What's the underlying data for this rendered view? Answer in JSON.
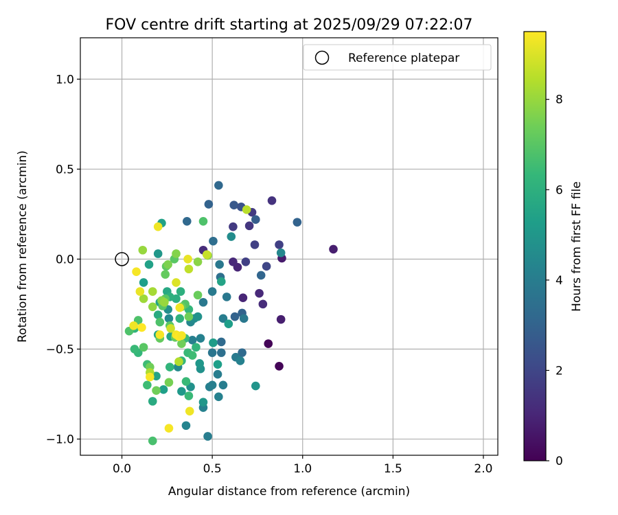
{
  "chart_data": {
    "type": "scatter",
    "title": "FOV centre drift starting at 2025/09/29 07:22:07",
    "xlabel": "Angular distance from reference (arcmin)",
    "ylabel": "Rotation from reference (arcmin)",
    "xlim": [
      -0.23,
      2.08
    ],
    "ylim": [
      -1.09,
      1.23
    ],
    "xticks": [
      0.0,
      0.5,
      1.0,
      1.5,
      2.0
    ],
    "xtick_labels": [
      "0.0",
      "0.5",
      "1.0",
      "1.5",
      "2.0"
    ],
    "yticks": [
      -1.0,
      -0.5,
      0.0,
      0.5,
      1.0
    ],
    "ytick_labels": [
      "−1.0",
      "−0.5",
      "0.0",
      "0.5",
      "1.0"
    ],
    "grid": true,
    "legend": {
      "placement": "top-right",
      "entries": [
        {
          "label": "Reference platepar",
          "marker": "open-circle"
        }
      ]
    },
    "reference_point": {
      "x": 0.0,
      "y": 0.0
    },
    "colorbar": {
      "label": "Hours from first FF file",
      "colormap": "viridis",
      "range": [
        0,
        9.5
      ],
      "ticks": [
        0,
        2,
        4,
        6,
        8
      ],
      "tick_labels": [
        "0",
        "2",
        "4",
        "6",
        "8"
      ]
    },
    "colormap_stops": [
      "#440154",
      "#482878",
      "#3e4a89",
      "#31688e",
      "#26828e",
      "#1f9e89",
      "#35b779",
      "#6ece58",
      "#b5de2b",
      "#fde725"
    ],
    "points": [
      {
        "x": 0.81,
        "y": -0.47,
        "h": 0.1
      },
      {
        "x": 0.87,
        "y": -0.595,
        "h": 0.1
      },
      {
        "x": 1.17,
        "y": 0.055,
        "h": 0.8
      },
      {
        "x": 0.885,
        "y": 0.005,
        "h": 0.7
      },
      {
        "x": 0.88,
        "y": -0.335,
        "h": 0.8
      },
      {
        "x": 0.64,
        "y": -0.045,
        "h": 1.0
      },
      {
        "x": 0.615,
        "y": -0.015,
        "h": 1.1
      },
      {
        "x": 0.67,
        "y": -0.215,
        "h": 1.0
      },
      {
        "x": 0.76,
        "y": -0.19,
        "h": 1.1
      },
      {
        "x": 0.78,
        "y": -0.25,
        "h": 1.2
      },
      {
        "x": 0.45,
        "y": 0.05,
        "h": 1.2
      },
      {
        "x": 0.615,
        "y": 0.18,
        "h": 1.6
      },
      {
        "x": 0.705,
        "y": 0.185,
        "h": 1.5
      },
      {
        "x": 0.72,
        "y": 0.26,
        "h": 1.6
      },
      {
        "x": 0.83,
        "y": 0.325,
        "h": 1.4
      },
      {
        "x": 0.87,
        "y": 0.08,
        "h": 1.8
      },
      {
        "x": 0.735,
        "y": 0.08,
        "h": 1.8
      },
      {
        "x": 0.685,
        "y": -0.015,
        "h": 1.8
      },
      {
        "x": 0.8,
        "y": -0.04,
        "h": 2.0
      },
      {
        "x": 0.62,
        "y": 0.3,
        "h": 2.6
      },
      {
        "x": 0.66,
        "y": 0.29,
        "h": 2.4
      },
      {
        "x": 0.74,
        "y": 0.22,
        "h": 2.8
      },
      {
        "x": 0.97,
        "y": 0.205,
        "h": 3.0
      },
      {
        "x": 0.48,
        "y": 0.305,
        "h": 3.0
      },
      {
        "x": 0.535,
        "y": 0.41,
        "h": 3.2
      },
      {
        "x": 0.36,
        "y": 0.21,
        "h": 3.2
      },
      {
        "x": 0.77,
        "y": -0.09,
        "h": 3.1
      },
      {
        "x": 0.625,
        "y": -0.32,
        "h": 3.0
      },
      {
        "x": 0.665,
        "y": -0.3,
        "h": 3.0
      },
      {
        "x": 0.505,
        "y": 0.1,
        "h": 3.4
      },
      {
        "x": 0.545,
        "y": -0.1,
        "h": 3.5
      },
      {
        "x": 0.54,
        "y": -0.03,
        "h": 3.8
      },
      {
        "x": 0.5,
        "y": -0.18,
        "h": 3.9
      },
      {
        "x": 0.45,
        "y": -0.24,
        "h": 3.8
      },
      {
        "x": 0.58,
        "y": -0.21,
        "h": 3.8
      },
      {
        "x": 0.675,
        "y": -0.33,
        "h": 3.8
      },
      {
        "x": 0.56,
        "y": -0.33,
        "h": 4.0
      },
      {
        "x": 0.88,
        "y": 0.035,
        "h": 4.4
      },
      {
        "x": 0.605,
        "y": 0.125,
        "h": 4.6
      },
      {
        "x": 0.55,
        "y": -0.46,
        "h": 3.3
      },
      {
        "x": 0.55,
        "y": -0.52,
        "h": 3.5
      },
      {
        "x": 0.5,
        "y": -0.52,
        "h": 3.7
      },
      {
        "x": 0.665,
        "y": -0.52,
        "h": 3.3
      },
      {
        "x": 0.63,
        "y": -0.545,
        "h": 3.9
      },
      {
        "x": 0.655,
        "y": -0.565,
        "h": 4.2
      },
      {
        "x": 0.53,
        "y": -0.64,
        "h": 4.0
      },
      {
        "x": 0.56,
        "y": -0.7,
        "h": 4.0
      },
      {
        "x": 0.5,
        "y": -0.7,
        "h": 4.1
      },
      {
        "x": 0.485,
        "y": -0.71,
        "h": 4.1
      },
      {
        "x": 0.535,
        "y": -0.765,
        "h": 4.2
      },
      {
        "x": 0.45,
        "y": -0.825,
        "h": 4.2
      },
      {
        "x": 0.475,
        "y": -0.985,
        "h": 4.0
      },
      {
        "x": 0.355,
        "y": -0.925,
        "h": 4.3
      },
      {
        "x": 0.74,
        "y": -0.705,
        "h": 4.9
      },
      {
        "x": 0.435,
        "y": -0.44,
        "h": 4.2
      },
      {
        "x": 0.39,
        "y": -0.45,
        "h": 4.1
      },
      {
        "x": 0.38,
        "y": -0.35,
        "h": 4.4
      },
      {
        "x": 0.4,
        "y": -0.33,
        "h": 4.6
      },
      {
        "x": 0.42,
        "y": -0.32,
        "h": 4.8
      },
      {
        "x": 0.26,
        "y": -0.33,
        "h": 4.5
      },
      {
        "x": 0.255,
        "y": -0.28,
        "h": 4.7
      },
      {
        "x": 0.31,
        "y": -0.6,
        "h": 4.5
      },
      {
        "x": 0.38,
        "y": -0.71,
        "h": 4.8
      },
      {
        "x": 0.435,
        "y": -0.61,
        "h": 4.8
      },
      {
        "x": 0.43,
        "y": -0.58,
        "h": 5.0
      },
      {
        "x": 0.505,
        "y": -0.465,
        "h": 5.2
      },
      {
        "x": 0.53,
        "y": -0.585,
        "h": 5.3
      },
      {
        "x": 0.59,
        "y": -0.36,
        "h": 5.3
      },
      {
        "x": 0.55,
        "y": -0.125,
        "h": 5.5
      },
      {
        "x": 0.45,
        "y": -0.795,
        "h": 5.0
      },
      {
        "x": 0.33,
        "y": -0.735,
        "h": 5.1
      },
      {
        "x": 0.23,
        "y": -0.725,
        "h": 5.3
      },
      {
        "x": 0.19,
        "y": -0.65,
        "h": 5.5
      },
      {
        "x": 0.2,
        "y": 0.03,
        "h": 5.0
      },
      {
        "x": 0.22,
        "y": 0.2,
        "h": 5.4
      },
      {
        "x": 0.15,
        "y": -0.03,
        "h": 5.4
      },
      {
        "x": 0.12,
        "y": -0.13,
        "h": 5.3
      },
      {
        "x": 0.21,
        "y": -0.24,
        "h": 5.5
      },
      {
        "x": 0.25,
        "y": -0.18,
        "h": 5.7
      },
      {
        "x": 0.3,
        "y": -0.22,
        "h": 5.9
      },
      {
        "x": 0.27,
        "y": -0.43,
        "h": 5.6
      },
      {
        "x": 0.17,
        "y": -0.79,
        "h": 5.8
      },
      {
        "x": 0.2,
        "y": -0.42,
        "h": 5.6
      },
      {
        "x": 0.2,
        "y": -0.31,
        "h": 5.8
      },
      {
        "x": 0.265,
        "y": -0.21,
        "h": 6.0
      },
      {
        "x": 0.325,
        "y": -0.18,
        "h": 6.0
      },
      {
        "x": 0.32,
        "y": -0.33,
        "h": 6.1
      },
      {
        "x": 0.37,
        "y": -0.28,
        "h": 6.3
      },
      {
        "x": 0.35,
        "y": -0.44,
        "h": 6.4
      },
      {
        "x": 0.41,
        "y": -0.49,
        "h": 6.2
      },
      {
        "x": 0.365,
        "y": -0.52,
        "h": 6.4
      },
      {
        "x": 0.39,
        "y": -0.535,
        "h": 6.5
      },
      {
        "x": 0.33,
        "y": -0.565,
        "h": 6.3
      },
      {
        "x": 0.265,
        "y": -0.6,
        "h": 6.2
      },
      {
        "x": 0.37,
        "y": -0.76,
        "h": 6.4
      },
      {
        "x": 0.355,
        "y": -0.68,
        "h": 6.4
      },
      {
        "x": 0.14,
        "y": -0.7,
        "h": 6.5
      },
      {
        "x": 0.14,
        "y": -0.585,
        "h": 6.5
      },
      {
        "x": 0.07,
        "y": -0.385,
        "h": 6.2
      },
      {
        "x": 0.09,
        "y": -0.52,
        "h": 6.3
      },
      {
        "x": 0.07,
        "y": -0.5,
        "h": 6.4
      },
      {
        "x": 0.17,
        "y": -1.01,
        "h": 6.7
      },
      {
        "x": 0.04,
        "y": -0.4,
        "h": 6.8
      },
      {
        "x": 0.09,
        "y": -0.34,
        "h": 6.8
      },
      {
        "x": 0.12,
        "y": -0.49,
        "h": 7.0
      },
      {
        "x": 0.21,
        "y": -0.35,
        "h": 6.8
      },
      {
        "x": 0.225,
        "y": -0.26,
        "h": 7.0
      },
      {
        "x": 0.24,
        "y": -0.22,
        "h": 7.0
      },
      {
        "x": 0.265,
        "y": -0.37,
        "h": 7.0
      },
      {
        "x": 0.35,
        "y": -0.25,
        "h": 6.9
      },
      {
        "x": 0.45,
        "y": 0.21,
        "h": 6.8
      },
      {
        "x": 0.29,
        "y": 0.0,
        "h": 7.0
      },
      {
        "x": 0.245,
        "y": -0.04,
        "h": 7.1
      },
      {
        "x": 0.24,
        "y": -0.085,
        "h": 7.2
      },
      {
        "x": 0.21,
        "y": -0.44,
        "h": 7.2
      },
      {
        "x": 0.295,
        "y": -0.435,
        "h": 7.3
      },
      {
        "x": 0.155,
        "y": -0.6,
        "h": 7.4
      },
      {
        "x": 0.19,
        "y": -0.73,
        "h": 7.4
      },
      {
        "x": 0.26,
        "y": -0.685,
        "h": 7.5
      },
      {
        "x": 0.33,
        "y": -0.47,
        "h": 7.4
      },
      {
        "x": 0.33,
        "y": -0.265,
        "h": 7.3
      },
      {
        "x": 0.42,
        "y": -0.2,
        "h": 7.3
      },
      {
        "x": 0.37,
        "y": -0.32,
        "h": 7.4
      },
      {
        "x": 0.255,
        "y": -0.03,
        "h": 7.6
      },
      {
        "x": 0.3,
        "y": 0.03,
        "h": 7.7
      },
      {
        "x": 0.42,
        "y": -0.015,
        "h": 7.8
      },
      {
        "x": 0.475,
        "y": 0.02,
        "h": 7.9
      },
      {
        "x": 0.22,
        "y": -0.23,
        "h": 7.8
      },
      {
        "x": 0.235,
        "y": -0.24,
        "h": 8.0
      },
      {
        "x": 0.17,
        "y": -0.265,
        "h": 7.9
      },
      {
        "x": 0.12,
        "y": -0.22,
        "h": 8.1
      },
      {
        "x": 0.17,
        "y": -0.18,
        "h": 8.2
      },
      {
        "x": 0.115,
        "y": 0.05,
        "h": 8.0
      },
      {
        "x": 0.155,
        "y": -0.63,
        "h": 8.3
      },
      {
        "x": 0.315,
        "y": -0.57,
        "h": 8.4
      },
      {
        "x": 0.37,
        "y": -0.055,
        "h": 8.6
      },
      {
        "x": 0.69,
        "y": 0.275,
        "h": 8.5
      },
      {
        "x": 0.47,
        "y": 0.025,
        "h": 8.7
      },
      {
        "x": 0.27,
        "y": -0.385,
        "h": 8.8
      },
      {
        "x": 0.33,
        "y": -0.425,
        "h": 8.9
      },
      {
        "x": 0.3,
        "y": -0.13,
        "h": 9.0
      },
      {
        "x": 0.365,
        "y": 0.0,
        "h": 9.2
      },
      {
        "x": 0.2,
        "y": 0.18,
        "h": 9.3
      },
      {
        "x": 0.08,
        "y": -0.07,
        "h": 9.4
      },
      {
        "x": 0.1,
        "y": -0.18,
        "h": 9.2
      },
      {
        "x": 0.065,
        "y": -0.37,
        "h": 9.3
      },
      {
        "x": 0.11,
        "y": -0.38,
        "h": 9.5
      },
      {
        "x": 0.21,
        "y": -0.42,
        "h": 9.4
      },
      {
        "x": 0.3,
        "y": -0.42,
        "h": 9.4
      },
      {
        "x": 0.315,
        "y": -0.43,
        "h": 9.5
      },
      {
        "x": 0.33,
        "y": -0.425,
        "h": 9.4
      },
      {
        "x": 0.32,
        "y": -0.27,
        "h": 9.3
      },
      {
        "x": 0.155,
        "y": -0.655,
        "h": 9.4
      },
      {
        "x": 0.375,
        "y": -0.845,
        "h": 9.3
      },
      {
        "x": 0.26,
        "y": -0.94,
        "h": 9.4
      }
    ]
  }
}
